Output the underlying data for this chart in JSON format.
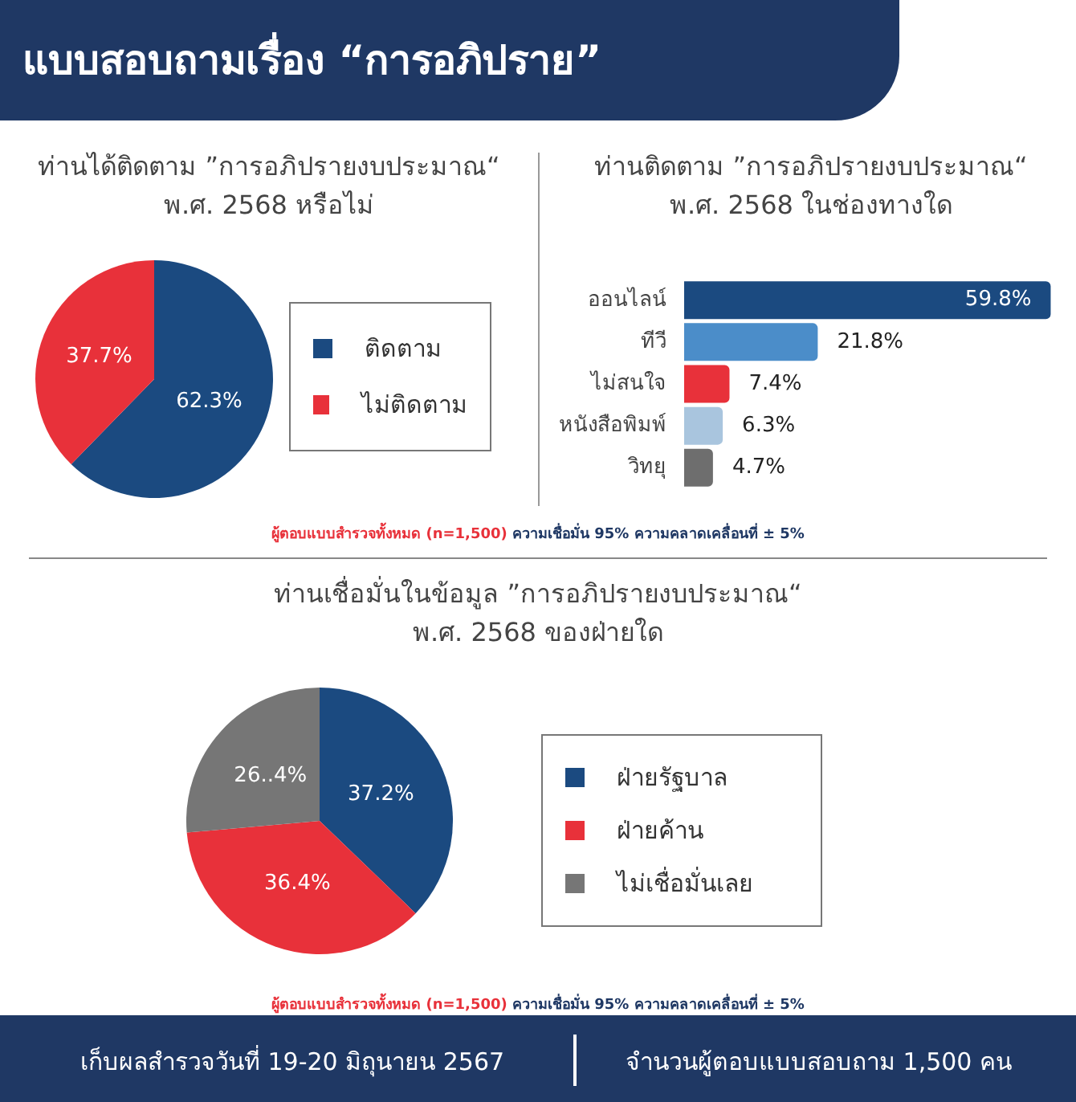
{
  "chart_data": [
    {
      "type": "other",
      "title": "แบบสอบถามเรื่อง “การอภิปราย”"
    },
    {
      "type": "pie",
      "title": "ท่านได้ติดตาม ”การอภิปรายงบประมาณ“",
      "subtitle": "พ.ศ. 2568 หรือไม่",
      "categories": [
        "ติดตาม",
        "ไม่ติดตาม"
      ],
      "values": [
        62.3,
        37.7
      ],
      "colors": [
        "#1b4a80",
        "#e8313a"
      ],
      "value_labels": [
        "62.3%",
        "37.7%"
      ],
      "legend": "right"
    },
    {
      "type": "bar",
      "orientation": "horizontal",
      "title": "ท่านติดตาม ”การอภิปรายงบประมาณ“",
      "subtitle": "พ.ศ. 2568 ในช่องทางใด",
      "categories": [
        "ออนไลน์",
        "ทีวี",
        "ไม่สนใจ",
        "หนังสือพิมพ์",
        "วิทยุ"
      ],
      "values": [
        59.8,
        21.8,
        7.4,
        6.3,
        4.7
      ],
      "colors": [
        "#1b4a80",
        "#4b8dc9",
        "#e8313a",
        "#a9c5de",
        "#6e6e6e"
      ],
      "value_labels": [
        "59.8%",
        "21.8%",
        "7.4%",
        "6.3%",
        "4.7%"
      ],
      "tick_labels": "y",
      "annotations": [
        "ผู้ตอบแบบสำรวจทั้งหมด (n=1,500)",
        "ความเชื่อมั่น 95% ความคลาดเคลื่อนที่ ± 5%"
      ]
    },
    {
      "type": "pie",
      "title": "ท่านเชื่อมั่นในข้อมูล ”การอภิปรายงบประมาณ“",
      "subtitle": "พ.ศ. 2568 ของฝ่ายใด",
      "categories": [
        "ฝ่ายรัฐบาล",
        "ฝ่ายค้าน",
        "ไม่เชื่อมั่นเลย"
      ],
      "values": [
        37.2,
        36.4,
        26.4
      ],
      "colors": [
        "#1b4a80",
        "#e8313a",
        "#767676"
      ],
      "value_labels": [
        "37.2%",
        "36.4%",
        "26..4%"
      ],
      "legend": "right",
      "annotations": [
        "ผู้ตอบแบบสำรวจทั้งหมด (n=1,500)",
        "ความเชื่อมั่น 95% ความคลาดเคลื่อนที่ ± 5%"
      ]
    },
    {
      "type": "other",
      "annotations": [
        "เก็บผลสำรวจวันที่ 19-20 มิถุนายน 2567",
        "จำนวนผู้ตอบแบบสอบถาม 1,500 คน"
      ]
    }
  ]
}
